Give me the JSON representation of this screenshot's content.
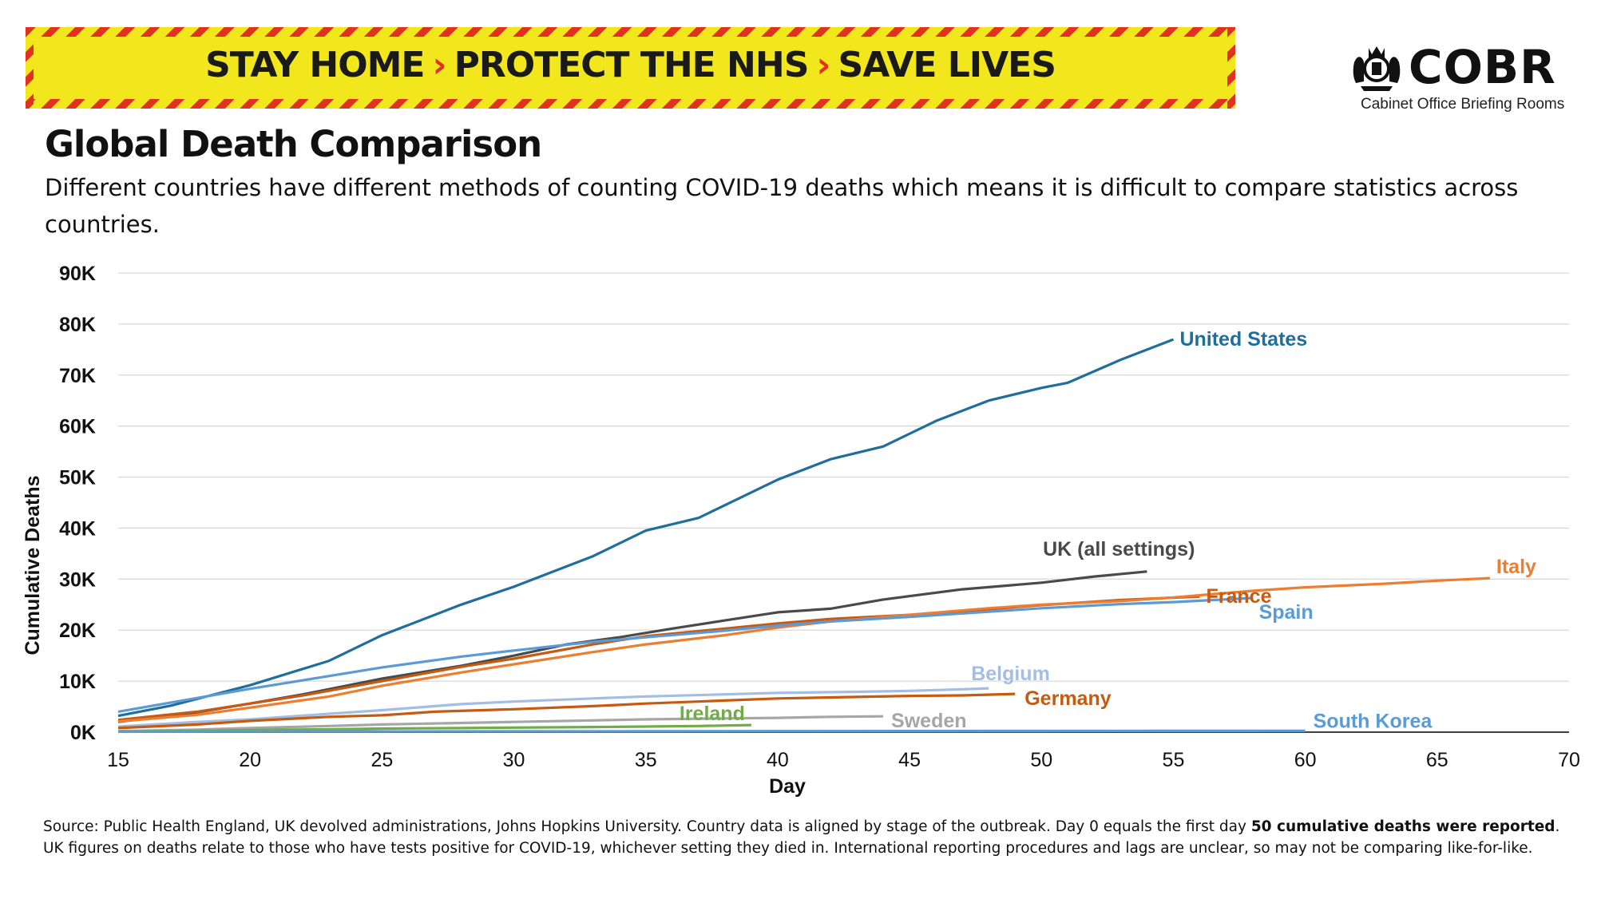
{
  "banner": {
    "part1": "STAY HOME",
    "part2": "PROTECT THE NHS",
    "part3": "SAVE LIVES",
    "chevron": "›"
  },
  "logo": {
    "icon": "royal-crest-icon",
    "name": "COBR",
    "subtitle": "Cabinet Office Briefing Rooms"
  },
  "title": "Global Death Comparison",
  "subtitle": "Different countries have different methods of counting COVID-19 deaths which means it is difficult to compare statistics across countries.",
  "source": {
    "text": "Source: Public Health England, UK devolved administrations, Johns Hopkins University. Country data is aligned by stage of the outbreak. Day 0 equals the first day ",
    "bold": "50 cumulative deaths were reported",
    "text2": ". UK figures on deaths relate to those who have tests positive for COVID-19, whichever setting they died in. International reporting procedures and lags are unclear, so may not be comparing like-for-like."
  },
  "colors": {
    "banner_yellow": "#f2e61c",
    "banner_red": "#e0321e",
    "grid": "#d9d9d9"
  },
  "chart_data": {
    "type": "line",
    "title": "Global Death Comparison",
    "xlabel": "Day",
    "ylabel": "Cumulative Deaths",
    "xlim": [
      15,
      70
    ],
    "ylim": [
      0,
      90000
    ],
    "xticks": [
      15,
      20,
      25,
      30,
      35,
      40,
      45,
      50,
      55,
      60,
      65,
      70
    ],
    "yticks": [
      0,
      10000,
      20000,
      30000,
      40000,
      50000,
      60000,
      70000,
      80000,
      90000
    ],
    "ytick_labels": [
      "0K",
      "10K",
      "20K",
      "30K",
      "40K",
      "50K",
      "60K",
      "70K",
      "80K",
      "90K"
    ],
    "grid": "horizontal",
    "legend": "inline labels at line ends",
    "series": [
      {
        "name": "United States",
        "color": "#1f6e9c",
        "x": [
          15,
          17,
          20,
          23,
          25,
          28,
          30,
          33,
          35,
          37,
          40,
          42,
          44,
          46,
          48,
          50,
          51,
          53,
          55
        ],
        "y": [
          3200,
          5200,
          9200,
          14000,
          19000,
          25000,
          28500,
          34500,
          39500,
          42000,
          49500,
          53500,
          56000,
          61000,
          65000,
          67500,
          68500,
          73000,
          77000
        ]
      },
      {
        "name": "UK (all settings)",
        "color": "#4a4a4a",
        "x": [
          15,
          18,
          20,
          22,
          25,
          28,
          30,
          32,
          34,
          36,
          38,
          40,
          42,
          44,
          47,
          50,
          52,
          54
        ],
        "y": [
          2000,
          3900,
          5600,
          7400,
          10500,
          13000,
          15000,
          17200,
          18600,
          20300,
          21900,
          23500,
          24200,
          26000,
          28000,
          29300,
          30500,
          31500
        ]
      },
      {
        "name": "France",
        "color": "#c55a11",
        "x": [
          15,
          18,
          20,
          22,
          25,
          28,
          30,
          33,
          35,
          38,
          40,
          42,
          45,
          48,
          50,
          53,
          56
        ],
        "y": [
          2400,
          4000,
          5600,
          7200,
          10000,
          12800,
          14400,
          17200,
          18800,
          20300,
          21300,
          22200,
          23000,
          24100,
          24900,
          25900,
          26600
        ]
      },
      {
        "name": "Italy",
        "color": "#ed7d31",
        "x": [
          15,
          18,
          20,
          23,
          25,
          28,
          30,
          33,
          35,
          38,
          40,
          42,
          45,
          48,
          50,
          53,
          55,
          58,
          60,
          63,
          65,
          67
        ],
        "y": [
          2100,
          3400,
          4800,
          7000,
          9100,
          11700,
          13300,
          15700,
          17200,
          19000,
          20500,
          21700,
          23000,
          24300,
          25000,
          25700,
          26400,
          27700,
          28400,
          29100,
          29700,
          30200
        ]
      },
      {
        "name": "Spain",
        "color": "#5b9bd5",
        "x": [
          15,
          18,
          20,
          23,
          25,
          28,
          30,
          33,
          35,
          38,
          40,
          42,
          45,
          48,
          50,
          53,
          55,
          58
        ],
        "y": [
          4000,
          6700,
          8500,
          11000,
          12700,
          14800,
          16000,
          17700,
          18600,
          19900,
          20900,
          21700,
          22600,
          23600,
          24300,
          25100,
          25500,
          26300
        ]
      },
      {
        "name": "Belgium",
        "color": "#a4bde3",
        "x": [
          15,
          18,
          20,
          23,
          25,
          28,
          30,
          33,
          35,
          38,
          40,
          43,
          45,
          47,
          48
        ],
        "y": [
          1100,
          2000,
          2500,
          3600,
          4300,
          5500,
          6000,
          6600,
          7000,
          7400,
          7700,
          7900,
          8100,
          8400,
          8600
        ]
      },
      {
        "name": "Germany",
        "color": "#c55a11",
        "x": [
          15,
          18,
          20,
          23,
          25,
          27,
          30,
          33,
          35,
          38,
          40,
          43,
          45,
          47,
          49
        ],
        "y": [
          800,
          1500,
          2200,
          3000,
          3300,
          4000,
          4500,
          5100,
          5600,
          6200,
          6600,
          6900,
          7100,
          7200,
          7500
        ]
      },
      {
        "name": "Sweden",
        "color": "#a6a6a6",
        "x": [
          15,
          18,
          20,
          23,
          25,
          28,
          30,
          33,
          35,
          38,
          40,
          42,
          44
        ],
        "y": [
          200,
          500,
          800,
          1200,
          1500,
          1800,
          2000,
          2300,
          2500,
          2700,
          2800,
          3000,
          3100
        ]
      },
      {
        "name": "Ireland",
        "color": "#70ad47",
        "x": [
          15,
          18,
          20,
          23,
          25,
          28,
          30,
          33,
          35,
          37,
          39
        ],
        "y": [
          100,
          250,
          400,
          550,
          700,
          800,
          900,
          1000,
          1100,
          1200,
          1400
        ]
      },
      {
        "name": "South Korea",
        "color": "#5b9bd5",
        "x": [
          15,
          20,
          25,
          30,
          35,
          40,
          45,
          50,
          55,
          60
        ],
        "y": [
          100,
          120,
          140,
          160,
          180,
          200,
          220,
          240,
          250,
          260
        ]
      }
    ]
  }
}
